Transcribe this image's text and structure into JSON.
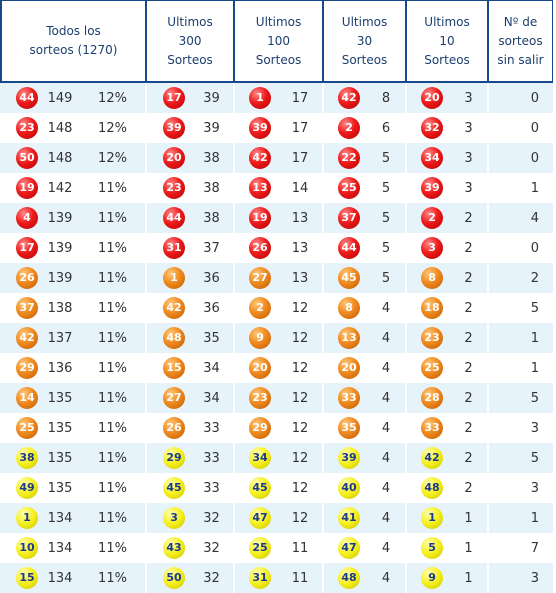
{
  "headers": [
    "Todos los sorteos (1270)",
    "Ultimos 300 Sorteos",
    "Ultimos 100 Sorteos",
    "Ultimos 30 Sorteos",
    "Ultimos 10 Sorteos",
    "Nº de sorteos sin salir"
  ],
  "colors": {
    "red": "#e8231f",
    "orange": "#f08a1f",
    "yellow": "#f5ef1a",
    "border": "#17498a",
    "alt_row": "#e7f3fa"
  },
  "rows": [
    {
      "c": "red",
      "all": [
        "44",
        "149",
        "12%"
      ],
      "u300": [
        "17",
        "39"
      ],
      "u100": [
        "1",
        "17"
      ],
      "u30": [
        "42",
        "8"
      ],
      "u10": [
        "20",
        "3"
      ],
      "sin": "0"
    },
    {
      "c": "red",
      "all": [
        "23",
        "148",
        "12%"
      ],
      "u300": [
        "39",
        "39"
      ],
      "u100": [
        "39",
        "17"
      ],
      "u30": [
        "2",
        "6"
      ],
      "u10": [
        "32",
        "3"
      ],
      "sin": "0"
    },
    {
      "c": "red",
      "all": [
        "50",
        "148",
        "12%"
      ],
      "u300": [
        "20",
        "38"
      ],
      "u100": [
        "42",
        "17"
      ],
      "u30": [
        "22",
        "5"
      ],
      "u10": [
        "34",
        "3"
      ],
      "sin": "0"
    },
    {
      "c": "red",
      "all": [
        "19",
        "142",
        "11%"
      ],
      "u300": [
        "23",
        "38"
      ],
      "u100": [
        "13",
        "14"
      ],
      "u30": [
        "25",
        "5"
      ],
      "u10": [
        "39",
        "3"
      ],
      "sin": "1"
    },
    {
      "c": "red",
      "all": [
        "4",
        "139",
        "11%"
      ],
      "u300": [
        "44",
        "38"
      ],
      "u100": [
        "19",
        "13"
      ],
      "u30": [
        "37",
        "5"
      ],
      "u10": [
        "2",
        "2"
      ],
      "sin": "4"
    },
    {
      "c": "red",
      "all": [
        "17",
        "139",
        "11%"
      ],
      "u300": [
        "31",
        "37"
      ],
      "u100": [
        "26",
        "13"
      ],
      "u30": [
        "44",
        "5"
      ],
      "u10": [
        "3",
        "2"
      ],
      "sin": "0"
    },
    {
      "c": "orange",
      "all": [
        "26",
        "139",
        "11%"
      ],
      "u300": [
        "1",
        "36"
      ],
      "u100": [
        "27",
        "13"
      ],
      "u30": [
        "45",
        "5"
      ],
      "u10": [
        "8",
        "2"
      ],
      "sin": "2"
    },
    {
      "c": "orange",
      "all": [
        "37",
        "138",
        "11%"
      ],
      "u300": [
        "42",
        "36"
      ],
      "u100": [
        "2",
        "12"
      ],
      "u30": [
        "8",
        "4"
      ],
      "u10": [
        "18",
        "2"
      ],
      "sin": "5"
    },
    {
      "c": "orange",
      "all": [
        "42",
        "137",
        "11%"
      ],
      "u300": [
        "48",
        "35"
      ],
      "u100": [
        "9",
        "12"
      ],
      "u30": [
        "13",
        "4"
      ],
      "u10": [
        "23",
        "2"
      ],
      "sin": "1"
    },
    {
      "c": "orange",
      "all": [
        "29",
        "136",
        "11%"
      ],
      "u300": [
        "15",
        "34"
      ],
      "u100": [
        "20",
        "12"
      ],
      "u30": [
        "20",
        "4"
      ],
      "u10": [
        "25",
        "2"
      ],
      "sin": "1"
    },
    {
      "c": "orange",
      "all": [
        "14",
        "135",
        "11%"
      ],
      "u300": [
        "27",
        "34"
      ],
      "u100": [
        "23",
        "12"
      ],
      "u30": [
        "33",
        "4"
      ],
      "u10": [
        "28",
        "2"
      ],
      "sin": "5"
    },
    {
      "c": "orange",
      "all": [
        "25",
        "135",
        "11%"
      ],
      "u300": [
        "26",
        "33"
      ],
      "u100": [
        "29",
        "12"
      ],
      "u30": [
        "35",
        "4"
      ],
      "u10": [
        "33",
        "2"
      ],
      "sin": "3"
    },
    {
      "c": "yellow",
      "all": [
        "38",
        "135",
        "11%"
      ],
      "u300": [
        "29",
        "33"
      ],
      "u100": [
        "34",
        "12"
      ],
      "u30": [
        "39",
        "4"
      ],
      "u10": [
        "42",
        "2"
      ],
      "sin": "5"
    },
    {
      "c": "yellow",
      "all": [
        "49",
        "135",
        "11%"
      ],
      "u300": [
        "45",
        "33"
      ],
      "u100": [
        "45",
        "12"
      ],
      "u30": [
        "40",
        "4"
      ],
      "u10": [
        "48",
        "2"
      ],
      "sin": "3"
    },
    {
      "c": "yellow",
      "all": [
        "1",
        "134",
        "11%"
      ],
      "u300": [
        "3",
        "32"
      ],
      "u100": [
        "47",
        "12"
      ],
      "u30": [
        "41",
        "4"
      ],
      "u10": [
        "1",
        "1"
      ],
      "sin": "1"
    },
    {
      "c": "yellow",
      "all": [
        "10",
        "134",
        "11%"
      ],
      "u300": [
        "43",
        "32"
      ],
      "u100": [
        "25",
        "11"
      ],
      "u30": [
        "47",
        "4"
      ],
      "u10": [
        "5",
        "1"
      ],
      "sin": "7"
    },
    {
      "c": "yellow",
      "all": [
        "15",
        "134",
        "11%"
      ],
      "u300": [
        "50",
        "32"
      ],
      "u100": [
        "31",
        "11"
      ],
      "u30": [
        "48",
        "4"
      ],
      "u10": [
        "9",
        "1"
      ],
      "sin": "3"
    }
  ]
}
